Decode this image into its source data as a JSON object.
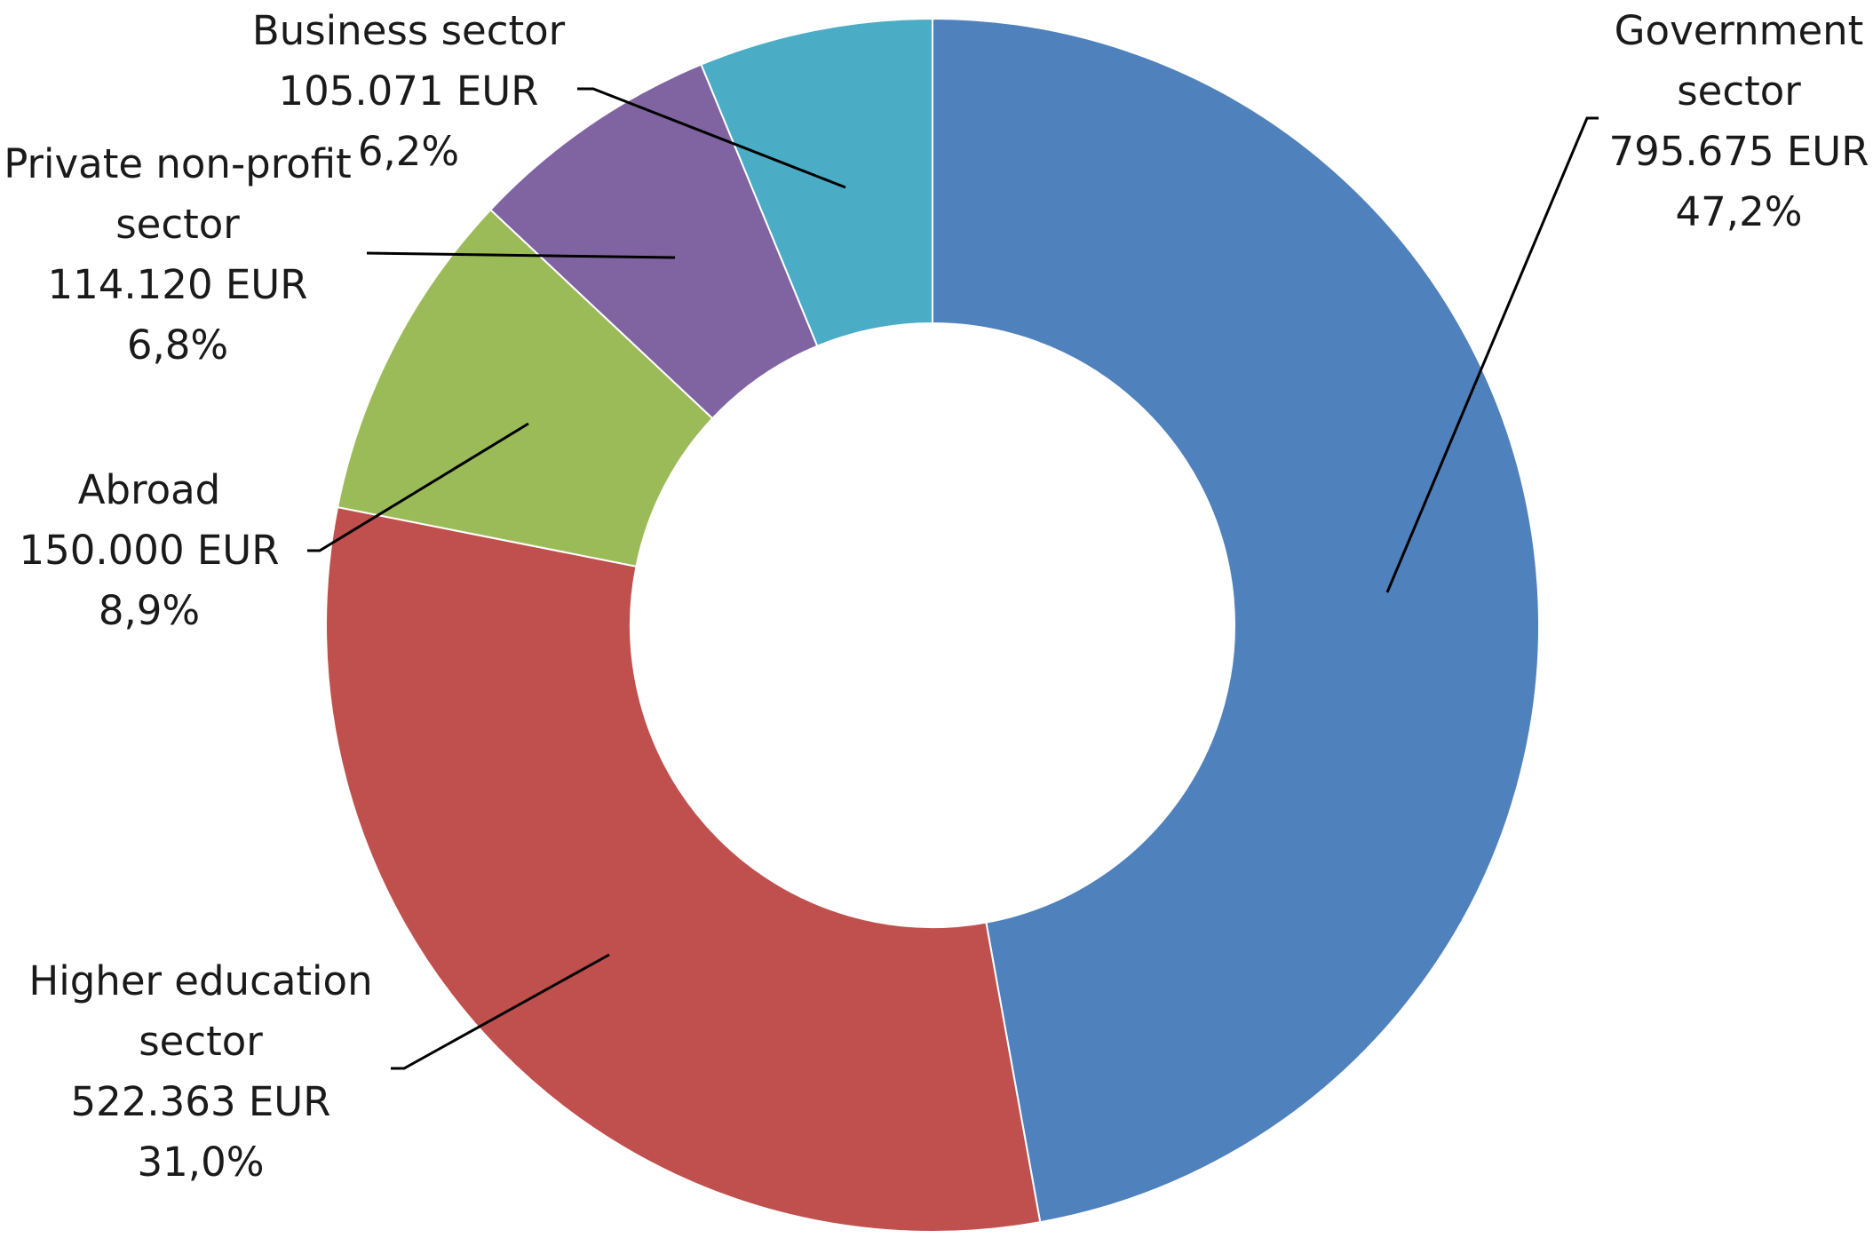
{
  "chart_data": {
    "type": "donut",
    "title": "",
    "unit": "EUR",
    "start_angle_deg": 0,
    "direction": "clockwise",
    "slices": [
      {
        "name": "Government sector",
        "label_lines": [
          "Government",
          "sector"
        ],
        "value_label": "795.675 EUR",
        "value": 795675,
        "percent": 47.2,
        "percent_label": "47,2%",
        "color": "#4F81BD"
      },
      {
        "name": "Higher education sector",
        "label_lines": [
          "Higher education",
          "sector"
        ],
        "value_label": "522.363 EUR",
        "value": 522363,
        "percent": 31.0,
        "percent_label": "31,0%",
        "color": "#C0504D"
      },
      {
        "name": "Abroad",
        "label_lines": [
          "Abroad"
        ],
        "value_label": "150.000 EUR",
        "value": 150000,
        "percent": 8.9,
        "percent_label": "8,9%",
        "color": "#9BBB59"
      },
      {
        "name": "Private non-profit sector",
        "label_lines": [
          "Private non-profit",
          "sector"
        ],
        "value_label": "114.120 EUR",
        "value": 114120,
        "percent": 6.8,
        "percent_label": "6,8%",
        "color": "#8064A2"
      },
      {
        "name": "Business sector",
        "label_lines": [
          "Business sector"
        ],
        "value_label": "105.071 EUR",
        "value": 105071,
        "percent": 6.2,
        "percent_label": "6,2%",
        "color": "#4BACC6"
      }
    ],
    "legend": "none",
    "data_labels": "outside-with-leader-lines"
  }
}
